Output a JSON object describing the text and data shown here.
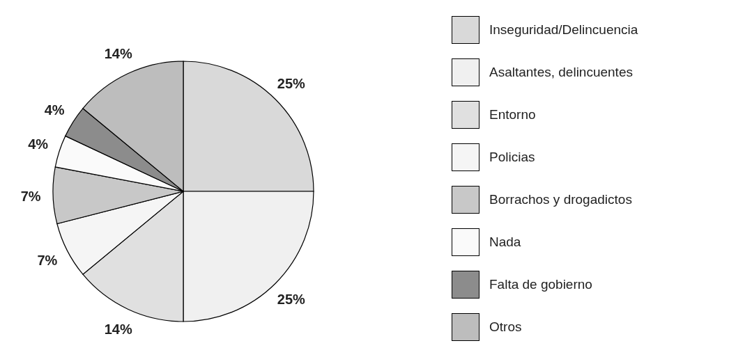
{
  "chart_data": {
    "type": "pie",
    "categories": [
      "Inseguridad/Delincuencia",
      "Asaltantes, delincuentes",
      "Entorno",
      "Policias",
      "Borrachos y drogadictos",
      "Nada",
      "Falta de gobierno",
      "Otros"
    ],
    "values": [
      25,
      25,
      14,
      7,
      7,
      4,
      4,
      14
    ],
    "value_labels": [
      "25%",
      "25%",
      "14%",
      "7%",
      "7%",
      "4%",
      "4%",
      "14%"
    ],
    "colors": [
      "#d9d9d9",
      "#f0f0f0",
      "#e0e0e0",
      "#f5f5f5",
      "#c8c8c8",
      "#fafafa",
      "#8c8c8c",
      "#bdbdbd"
    ],
    "legend": "right"
  }
}
